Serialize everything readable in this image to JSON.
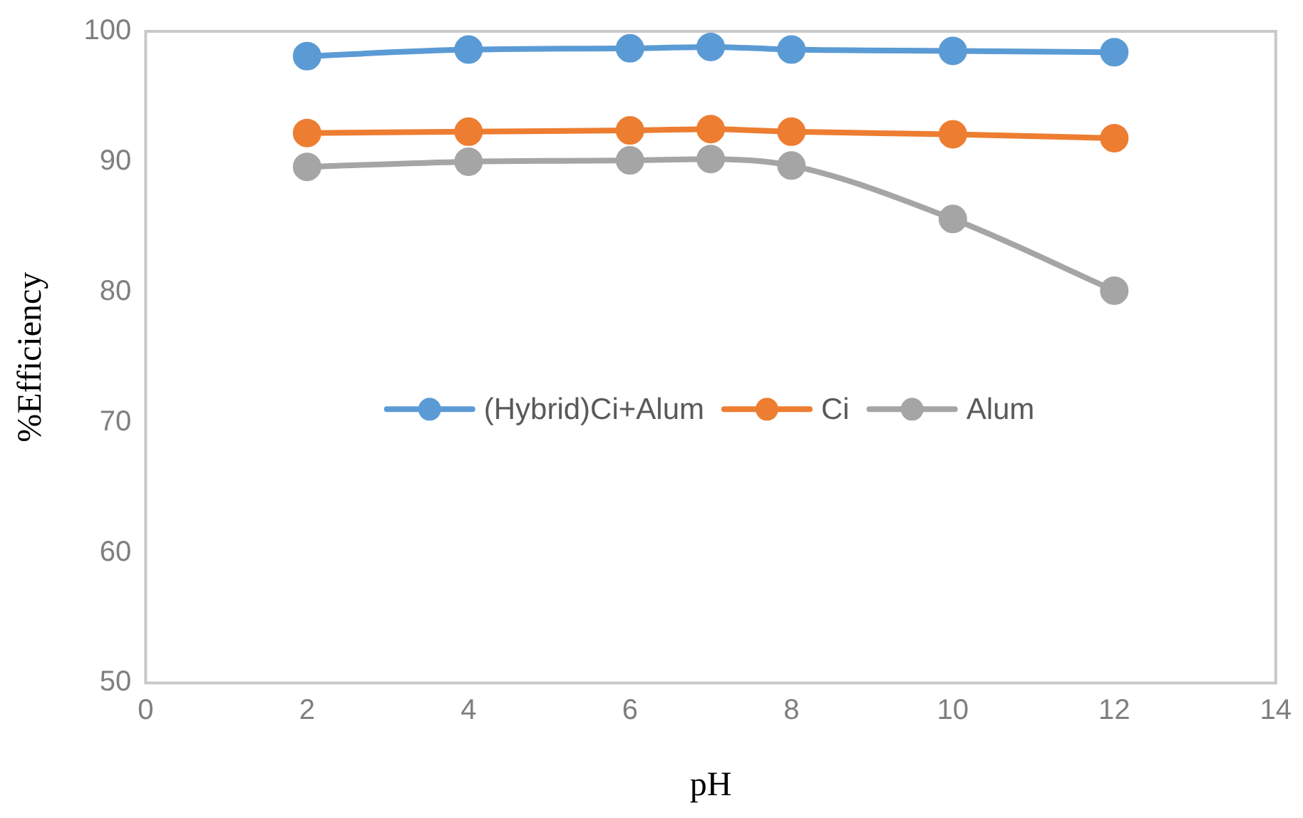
{
  "chart_data": {
    "type": "line",
    "xlabel": "pH",
    "ylabel": "%Efficiency",
    "x": [
      2,
      4,
      6,
      7,
      8,
      10,
      12
    ],
    "series": [
      {
        "name": "(Hybrid)Ci+Alum",
        "color": "#5b9bd5",
        "values": [
          98.1,
          98.6,
          98.7,
          98.8,
          98.6,
          98.5,
          98.4
        ]
      },
      {
        "name": "Ci",
        "color": "#ed7d31",
        "values": [
          92.2,
          92.3,
          92.4,
          92.5,
          92.3,
          92.1,
          91.8
        ]
      },
      {
        "name": "Alum",
        "color": "#a5a5a5",
        "values": [
          89.6,
          90.0,
          90.1,
          90.2,
          89.7,
          85.6,
          80.1
        ]
      }
    ],
    "xlim": [
      0,
      14
    ],
    "xticks": [
      0,
      2,
      4,
      6,
      8,
      10,
      12,
      14
    ],
    "ylim": [
      50,
      100
    ],
    "yticks": [
      50,
      60,
      70,
      80,
      90,
      100
    ],
    "grid": false,
    "legend": "center",
    "marker": "circle",
    "line_style": "solid"
  }
}
